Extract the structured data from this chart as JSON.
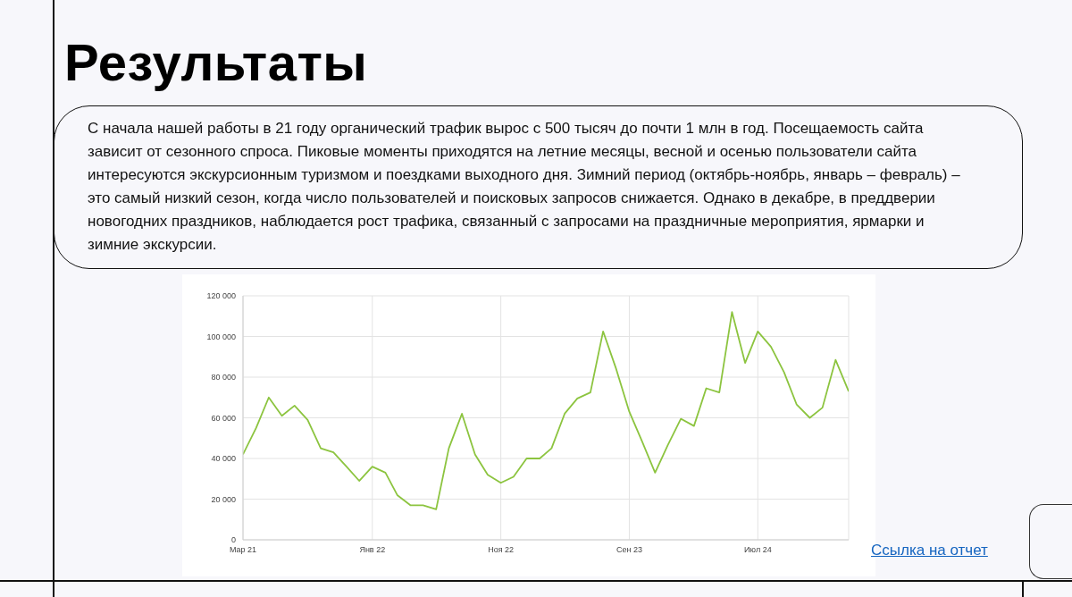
{
  "chart_data": {
    "type": "line",
    "title": "Результаты",
    "subtitle": "С начала нашей работы в 21 году органический трафик вырос с 500 тысяч до почти 1 млн в год. Посещаемость сайта зависит от сезонного спроса. Пиковые моменты приходятся на летние месяцы, весной и осенью пользователи сайта интересуются экскурсионным туризмом и поездками выходного дня. Зимний период (октябрь-ноябрь, январь – февраль) – это самый низкий сезон, когда число пользователей и поисковых запросов снижается. Однако в декабре, в преддверии новогодних праздников, наблюдается рост трафика, связанный с запросами на праздничные мероприятия, ярмарки и зимние экскурсии.",
    "annotations": [
      "Ссылка на отчет"
    ],
    "x": [
      "2021-03",
      "2021-04",
      "2021-05",
      "2021-06",
      "2021-07",
      "2021-08",
      "2021-09",
      "2021-10",
      "2021-11",
      "2021-12",
      "2022-01",
      "2022-02",
      "2022-03",
      "2022-04",
      "2022-05",
      "2022-06",
      "2022-07",
      "2022-08",
      "2022-09",
      "2022-10",
      "2022-11",
      "2022-12",
      "2023-01",
      "2023-02",
      "2023-03",
      "2023-04",
      "2023-05",
      "2023-06",
      "2023-07",
      "2023-08",
      "2023-09",
      "2023-10",
      "2023-11",
      "2023-12",
      "2024-01",
      "2024-02",
      "2024-03",
      "2024-04",
      "2024-05",
      "2024-06",
      "2024-07",
      "2024-08",
      "2024-09",
      "2024-10",
      "2024-11",
      "2024-12",
      "2025-01",
      "2025-02"
    ],
    "values": [
      42000,
      55000,
      70000,
      61000,
      66000,
      59000,
      45000,
      43000,
      36000,
      29000,
      36000,
      33000,
      22000,
      17000,
      17000,
      15000,
      45000,
      62000,
      42000,
      32000,
      28000,
      31000,
      40000,
      40000,
      45000,
      62000,
      69500,
      72500,
      102500,
      84000,
      63000,
      48500,
      33000,
      46500,
      59500,
      56000,
      74500,
      72500,
      112000,
      87000,
      102500,
      95000,
      82500,
      66500,
      60000,
      65000,
      88500,
      73000
    ],
    "color": "#8cc43f",
    "xlim": [
      "2021-03",
      "2025-02"
    ],
    "xticks": [
      {
        "value": "2021-03",
        "label": "Мар 21"
      },
      {
        "value": "2022-01",
        "label": "Янв 22"
      },
      {
        "value": "2022-11",
        "label": "Ноя 22"
      },
      {
        "value": "2023-09",
        "label": "Сен 23"
      },
      {
        "value": "2024-07",
        "label": "Июл 24"
      }
    ],
    "ylim": [
      0,
      120000
    ],
    "yticks": [
      0,
      {
        "value": 20000,
        "label": "20 000"
      },
      {
        "value": 40000,
        "label": "40 000"
      },
      {
        "value": 60000,
        "label": "60 000"
      },
      {
        "value": 80000,
        "label": "80 000"
      },
      {
        "value": 100000,
        "label": "100 000"
      },
      {
        "value": 120000,
        "label": "120 000"
      }
    ],
    "grid": true
  }
}
